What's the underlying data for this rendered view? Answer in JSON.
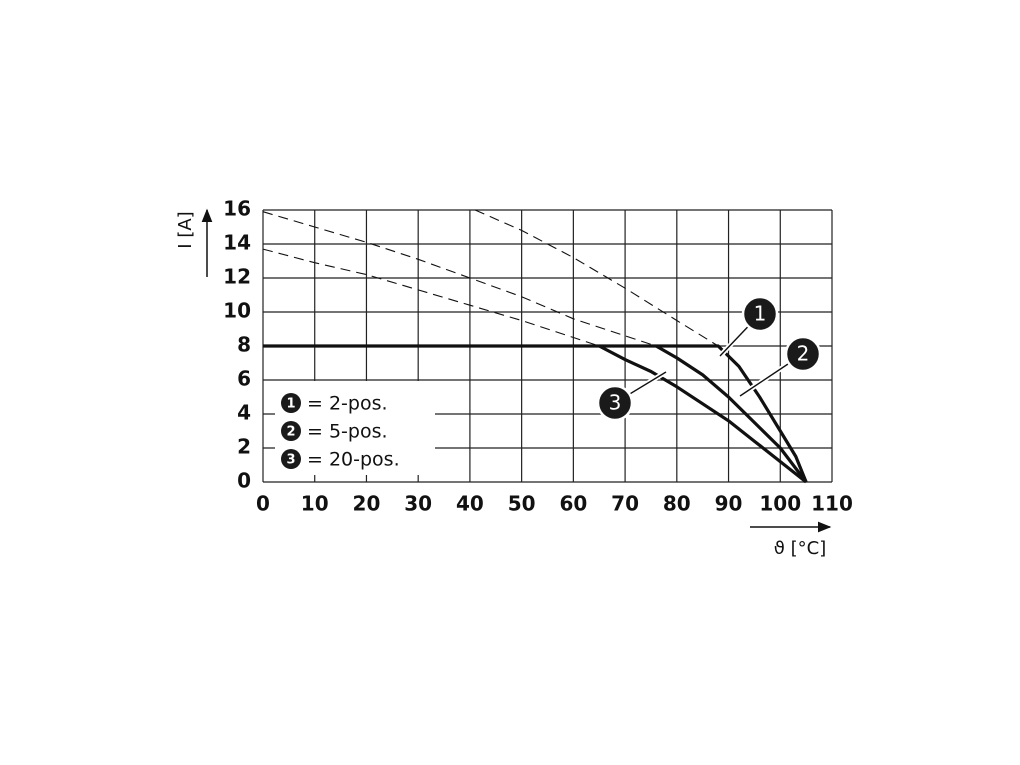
{
  "chart_data": {
    "type": "line",
    "y_label": "I [A]",
    "x_label": "ϑ [°C]",
    "xlim": [
      0,
      110
    ],
    "xticks": [
      0,
      10,
      20,
      30,
      40,
      50,
      60,
      70,
      80,
      90,
      100,
      110
    ],
    "ylim": [
      0,
      16
    ],
    "yticks": [
      0,
      2,
      4,
      6,
      8,
      10,
      12,
      14,
      16
    ],
    "grid": true,
    "series": [
      {
        "name": "= 2-pos.",
        "marker": "1",
        "color": "#111111",
        "x": [
          0,
          88,
          92,
          96,
          100,
          103,
          105
        ],
        "values": [
          8,
          8,
          6.8,
          5,
          3,
          1.5,
          0
        ],
        "extrapolation": {
          "x": [
            41,
            50,
            60,
            70,
            80,
            88
          ],
          "values": [
            16,
            14.8,
            13.2,
            11.4,
            9.5,
            8
          ]
        }
      },
      {
        "name": "= 5-pos.",
        "marker": "2",
        "color": "#111111",
        "x": [
          76,
          80,
          85,
          90,
          95,
          100,
          105
        ],
        "values": [
          8,
          7.3,
          6.3,
          5,
          3.5,
          2,
          0
        ],
        "extrapolation": {
          "x": [
            0,
            10,
            20,
            30,
            40,
            50,
            60,
            70,
            76
          ],
          "values": [
            15.9,
            15,
            14.1,
            13.1,
            12,
            10.9,
            9.6,
            8.6,
            8
          ]
        }
      },
      {
        "name": "= 20-pos.",
        "marker": "3",
        "color": "#111111",
        "x": [
          65,
          70,
          75,
          80,
          85,
          90,
          95,
          100,
          105
        ],
        "values": [
          8,
          7.2,
          6.5,
          5.6,
          4.6,
          3.6,
          2.4,
          1.2,
          0
        ],
        "extrapolation": {
          "x": [
            0,
            10,
            20,
            30,
            40,
            50,
            60,
            65
          ],
          "values": [
            13.7,
            12.9,
            12.2,
            11.3,
            10.4,
            9.5,
            8.5,
            8
          ]
        }
      }
    ]
  }
}
